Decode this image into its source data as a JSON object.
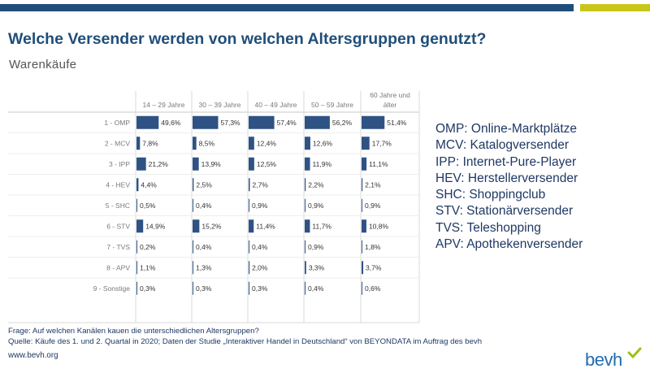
{
  "header": {
    "title": "Welche Versender werden von welchen Altersgruppen genutzt?",
    "subtitle": "Warenkäufe"
  },
  "chart_data": {
    "type": "bar",
    "orientation": "horizontal-small-multiples",
    "title": "Welche Versender werden von welchen Altersgruppen genutzt?",
    "subtitle": "Warenkäufe",
    "categories": [
      "1 - OMP",
      "2 - MCV",
      "3 - IPP",
      "4 - HEV",
      "5 - SHC",
      "6 - STV",
      "7 - TVS",
      "8 - APV",
      "9 - Sonstige"
    ],
    "panels": [
      "14 – 29 Jahre",
      "30 – 39 Jahre",
      "40 – 49 Jahre",
      "50 – 59 Jahre",
      "60 Jahre und älter"
    ],
    "series": [
      {
        "name": "14 – 29 Jahre",
        "values": [
          49.6,
          7.8,
          21.2,
          4.4,
          0.5,
          14.9,
          0.2,
          1.1,
          0.3
        ]
      },
      {
        "name": "30 – 39 Jahre",
        "values": [
          57.3,
          8.5,
          13.9,
          2.5,
          0.4,
          15.2,
          0.4,
          1.3,
          0.3
        ]
      },
      {
        "name": "40 – 49 Jahre",
        "values": [
          57.4,
          12.4,
          12.5,
          2.7,
          0.9,
          11.4,
          0.4,
          2.0,
          0.3
        ]
      },
      {
        "name": "50 – 59 Jahre",
        "values": [
          56.2,
          12.6,
          11.9,
          2.2,
          0.9,
          11.7,
          0.9,
          3.3,
          0.4
        ]
      },
      {
        "name": "60 Jahre und älter",
        "values": [
          51.4,
          17.7,
          11.1,
          2.1,
          0.9,
          10.8,
          1.8,
          3.7,
          0.6
        ]
      }
    ],
    "value_labels": [
      [
        "49,6%",
        "7,8%",
        "21,2%",
        "4,4%",
        "0,5%",
        "14,9%",
        "0,2%",
        "1,1%",
        "0,3%"
      ],
      [
        "57,3%",
        "8,5%",
        "13,9%",
        "2,5%",
        "0,4%",
        "15,2%",
        "0,4%",
        "1,3%",
        "0,3%"
      ],
      [
        "57,4%",
        "12,4%",
        "12,5%",
        "2,7%",
        "0,9%",
        "11,4%",
        "0,4%",
        "2,0%",
        "0,3%"
      ],
      [
        "56,2%",
        "12,6%",
        "11,9%",
        "2,2%",
        "0,9%",
        "11,7%",
        "0,9%",
        "3,3%",
        "0,4%"
      ],
      [
        "51,4%",
        "17,7%",
        "11,1%",
        "2,1%",
        "0,9%",
        "10,8%",
        "1,8%",
        "3,7%",
        "0,6%"
      ]
    ],
    "xlim": [
      0,
      60
    ],
    "bar_color": "#2e5284",
    "grid": false
  },
  "legend": {
    "items": [
      "OMP: Online-Marktplätze",
      "MCV: Katalogversender",
      "IPP: Internet-Pure-Player",
      "HEV: Herstellerversender",
      "SHC: Shoppingclub",
      "STV: Stationärversender",
      "TVS: Teleshopping",
      "APV: Apothekenversender"
    ]
  },
  "footer": {
    "question": "Frage: Auf welchen Kanälen kauen die unterschiedlichen Altersgruppen?",
    "source": "Quelle: Käufe des 1. und 2. Quartal in 2020; Daten der Studie „Interaktiver Handel in Deutschland“ von BEYONDATA im Auftrag des bevh",
    "website": "www.bevh.org",
    "logo_text": "bevh"
  },
  "colors": {
    "brand_blue": "#1f4e79",
    "accent_yellow": "#c9c61a",
    "bar": "#2e5284"
  }
}
